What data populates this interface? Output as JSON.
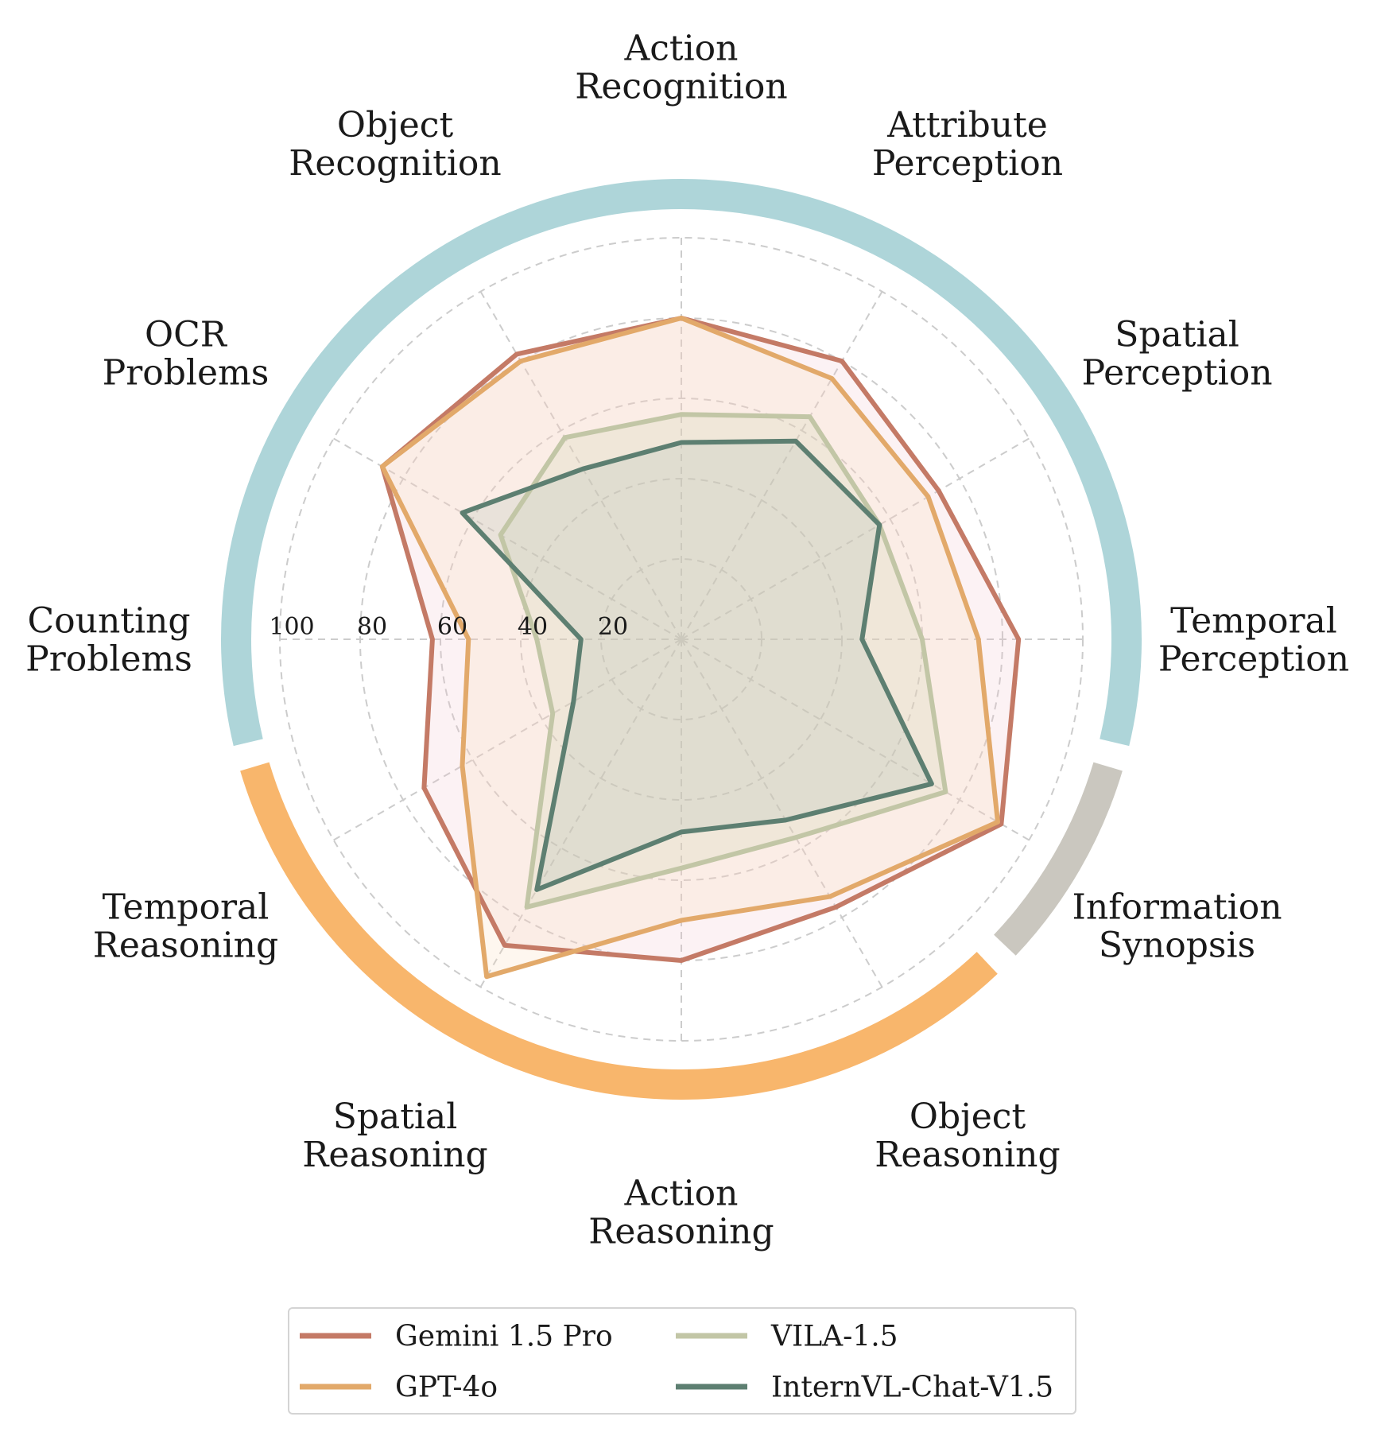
{
  "chart_data": {
    "type": "radar",
    "axes": [
      {
        "label_lines": [
          "Action",
          "Recognition"
        ]
      },
      {
        "label_lines": [
          "Attribute",
          "Perception"
        ]
      },
      {
        "label_lines": [
          "Spatial",
          "Perception"
        ]
      },
      {
        "label_lines": [
          "Temporal",
          "Perception"
        ]
      },
      {
        "label_lines": [
          "Information",
          "Synopsis"
        ]
      },
      {
        "label_lines": [
          "Object",
          "Reasoning"
        ]
      },
      {
        "label_lines": [
          "Action",
          "Reasoning"
        ]
      },
      {
        "label_lines": [
          "Spatial",
          "Reasoning"
        ]
      },
      {
        "label_lines": [
          "Temporal",
          "Reasoning"
        ]
      },
      {
        "label_lines": [
          "Counting",
          "Problems"
        ]
      },
      {
        "label_lines": [
          "OCR",
          "Problems"
        ]
      },
      {
        "label_lines": [
          "Object",
          "Recognition"
        ]
      }
    ],
    "r_ticks": [
      20,
      40,
      60,
      80,
      100
    ],
    "r_tick_labels": [
      "20",
      "40",
      "60",
      "80",
      "100"
    ],
    "r_max": 100,
    "grid": "dashed",
    "series": [
      {
        "name": "Gemini 1.5 Pro",
        "color": "#c47a66",
        "fill": "#f2c4cb",
        "values": [
          80,
          80,
          74,
          84,
          92,
          77,
          80,
          88,
          74,
          62,
          86,
          82
        ]
      },
      {
        "name": "GPT-4o",
        "color": "#e2a96a",
        "fill": "#f9dcb7",
        "values": [
          80,
          75,
          71,
          74,
          91,
          74,
          70,
          97,
          63,
          53,
          86,
          80
        ]
      },
      {
        "name": "VILA-1.5",
        "color": "#c2c6a6",
        "fill": "#c9d2ad",
        "values": [
          56,
          64,
          57,
          60,
          76,
          57,
          57,
          77,
          37,
          36,
          52,
          58
        ]
      },
      {
        "name": "InternVL-Chat-V1.5",
        "color": "#5d7f71",
        "fill": "#a7bcb2",
        "values": [
          49,
          57,
          57,
          45,
          72,
          52,
          48,
          72,
          31,
          25,
          63,
          49
        ]
      }
    ],
    "category_groups": [
      {
        "color": "#aed5d9",
        "axes": [
          9,
          10,
          11,
          0,
          1,
          2,
          3
        ]
      },
      {
        "color": "#cac7bf",
        "axes": [
          4
        ]
      },
      {
        "color": "#f8b66c",
        "axes": [
          5,
          6,
          7,
          8
        ]
      }
    ],
    "legend": {
      "placement": "bottom",
      "columns": 2
    }
  }
}
